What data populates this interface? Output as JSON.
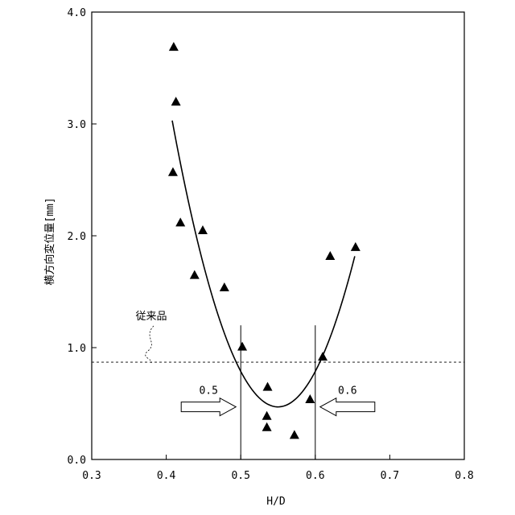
{
  "chart_data": {
    "type": "scatter",
    "xlabel": "H/D",
    "ylabel": "横方向変位量[mm]",
    "xlim": [
      0.3,
      0.8
    ],
    "ylim": [
      0.0,
      4.0
    ],
    "x_ticks": [
      0.3,
      0.4,
      0.5,
      0.6,
      0.7,
      0.8
    ],
    "y_ticks": [
      0.0,
      1.0,
      2.0,
      3.0,
      4.0
    ],
    "x_tick_labels": [
      "0.3",
      "0.4",
      "0.5",
      "0.6",
      "0.7",
      "0.8"
    ],
    "y_tick_labels": [
      "0.0",
      "1.0",
      "2.0",
      "3.0",
      "4.0"
    ],
    "grid": false,
    "marker": "filled-triangle",
    "series": [
      {
        "points": [
          {
            "x": 0.41,
            "y": 3.69
          },
          {
            "x": 0.413,
            "y": 3.2
          },
          {
            "x": 0.409,
            "y": 2.57
          },
          {
            "x": 0.419,
            "y": 2.12
          },
          {
            "x": 0.449,
            "y": 2.05
          },
          {
            "x": 0.438,
            "y": 1.65
          },
          {
            "x": 0.478,
            "y": 1.54
          },
          {
            "x": 0.502,
            "y": 1.01
          },
          {
            "x": 0.536,
            "y": 0.65
          },
          {
            "x": 0.535,
            "y": 0.39
          },
          {
            "x": 0.535,
            "y": 0.29
          },
          {
            "x": 0.572,
            "y": 0.22
          },
          {
            "x": 0.593,
            "y": 0.54
          },
          {
            "x": 0.61,
            "y": 0.92
          },
          {
            "x": 0.62,
            "y": 1.82
          },
          {
            "x": 0.654,
            "y": 1.9
          }
        ]
      }
    ],
    "fit_curve": {
      "type": "parabola",
      "vertex_x": 0.55,
      "vertex_y": 0.47,
      "x_range": [
        0.408,
        0.653
      ],
      "endpoint_values": [
        3.03,
        2.11
      ]
    },
    "reference_line": {
      "label": "従来品",
      "y": 0.87,
      "style": "dashed"
    },
    "vertical_markers": [
      {
        "x": 0.5,
        "y_top": 1.2,
        "label": "0.5",
        "arrow_direction": "right"
      },
      {
        "x": 0.6,
        "y_top": 1.2,
        "label": "0.6",
        "arrow_direction": "left"
      }
    ],
    "arrow_y": 0.47
  }
}
